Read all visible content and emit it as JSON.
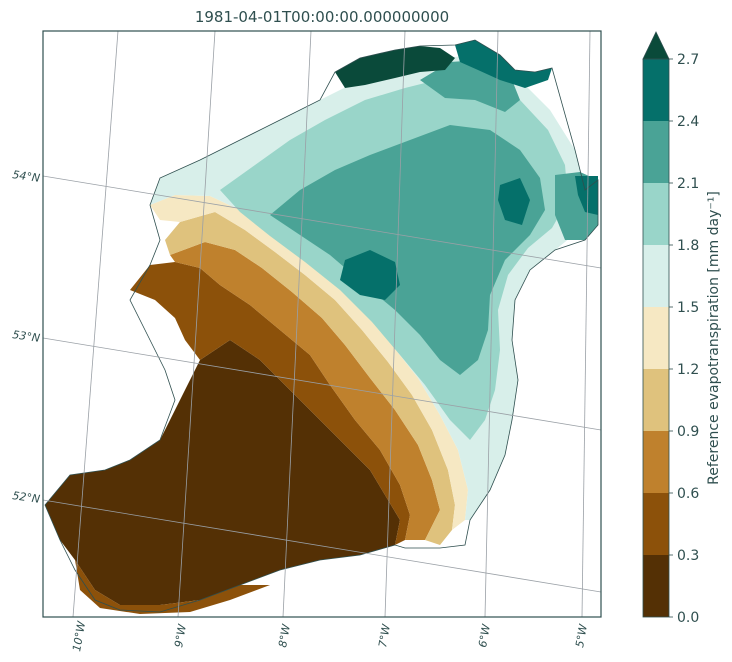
{
  "chart_data": {
    "type": "heatmap",
    "title": "1981-04-01T00:00:00.000000000",
    "colorbar": {
      "label": "Reference evapotranspiration [mm day⁻¹]",
      "ticks": [
        "0.0",
        "0.3",
        "0.6",
        "0.9",
        "1.2",
        "1.5",
        "1.8",
        "2.1",
        "2.4",
        "2.7"
      ],
      "levels": [
        0.0,
        0.3,
        0.6,
        0.9,
        1.2,
        1.5,
        1.8,
        2.1,
        2.4,
        2.7
      ],
      "colors": [
        "#543005",
        "#8c510a",
        "#bf812d",
        "#dfc27d",
        "#f6e8c3",
        "#d8efea",
        "#99d5c9",
        "#4aa396",
        "#05706a",
        "#0a4a3a"
      ],
      "extend": "max"
    },
    "lat_labels": [
      "54°N",
      "53°N",
      "52°N"
    ],
    "lon_labels": [
      "10°W",
      "9°W",
      "8°W",
      "7°W",
      "6°W",
      "5°W"
    ],
    "grid": true,
    "pattern": "values increase from southwest (0.0–0.3) to northeast (2.1–2.7)"
  }
}
